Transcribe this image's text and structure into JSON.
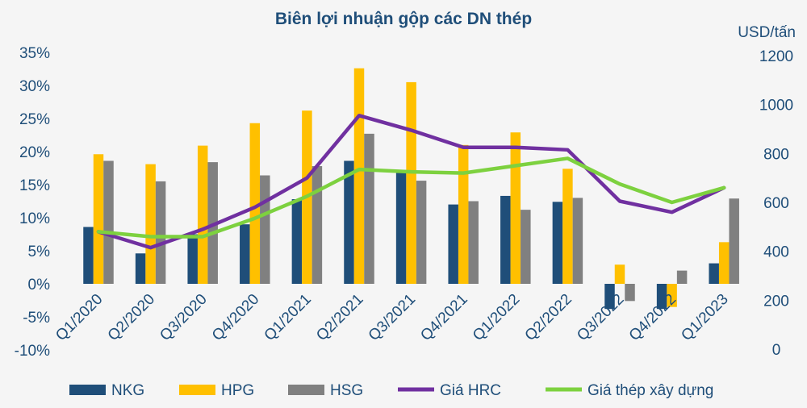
{
  "chart_data": {
    "type": "bar",
    "title": "Biên lợi nhuận gộp các DN thép",
    "categories": [
      "Q1/2020",
      "Q2/2020",
      "Q3/2020",
      "Q4/2020",
      "Q1/2021",
      "Q2/2021",
      "Q3/2021",
      "Q4/2021",
      "Q1/2022",
      "Q2/2022",
      "Q3/2022",
      "Q4/2022",
      "Q1/2023"
    ],
    "y_left": {
      "ticks": [
        "35%",
        "30%",
        "25%",
        "20%",
        "15%",
        "10%",
        "5%",
        "0%",
        "-5%",
        "-10%"
      ],
      "ylim": [
        -10,
        35
      ]
    },
    "y_right": {
      "label": "USD/tấn",
      "ticks": [
        "1200",
        "1000",
        "800",
        "600",
        "400",
        "200",
        "0"
      ],
      "ylim": [
        0,
        1200
      ]
    },
    "series": [
      {
        "name": "NKG",
        "kind": "bar",
        "axis": "left",
        "color": "#1f4e79",
        "values": [
          8.6,
          4.6,
          7.5,
          9.0,
          12.8,
          18.6,
          17.2,
          12.0,
          13.3,
          12.4,
          -3.8,
          -3.8,
          3.1
        ]
      },
      {
        "name": "HPG",
        "kind": "bar",
        "axis": "left",
        "color": "#ffc000",
        "values": [
          19.6,
          18.1,
          20.9,
          24.3,
          26.2,
          32.6,
          30.5,
          21.0,
          22.9,
          17.4,
          2.9,
          -3.5,
          6.3
        ]
      },
      {
        "name": "HSG",
        "kind": "bar",
        "axis": "left",
        "color": "#808080",
        "values": [
          18.6,
          15.5,
          18.4,
          16.4,
          17.8,
          22.7,
          15.6,
          12.5,
          11.2,
          13.0,
          -2.6,
          2.0,
          12.9
        ]
      },
      {
        "name": "Giá HRC",
        "kind": "line",
        "axis": "right",
        "color": "#7030a0",
        "values": [
          480,
          415,
          490,
          580,
          700,
          955,
          895,
          825,
          825,
          815,
          605,
          560,
          660
        ]
      },
      {
        "name": "Giá thép xây dựng",
        "kind": "line",
        "axis": "right",
        "color": "#7dd13f",
        "values": [
          480,
          460,
          460,
          535,
          625,
          735,
          725,
          720,
          750,
          780,
          675,
          600,
          660
        ]
      }
    ],
    "legend": "bottom",
    "grid": false
  }
}
